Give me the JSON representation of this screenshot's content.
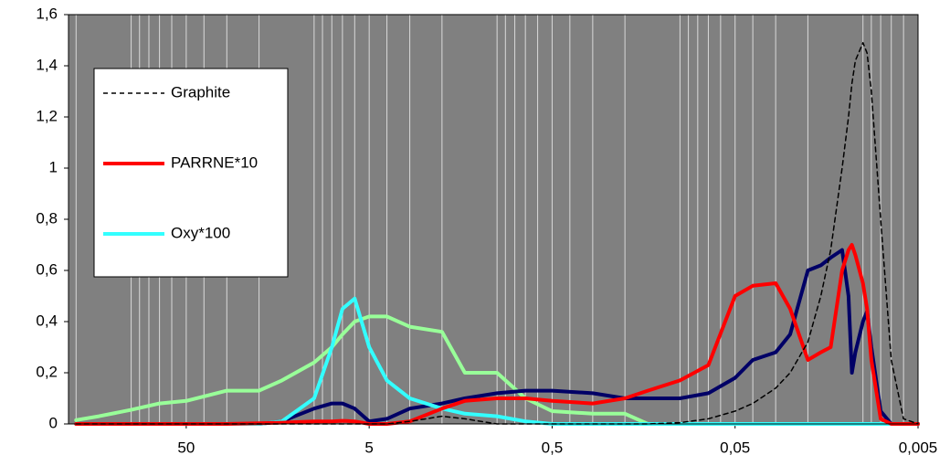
{
  "chart_data": {
    "type": "line",
    "x": [
      200,
      150,
      100,
      70,
      50,
      30,
      20,
      15,
      10,
      8,
      7,
      6,
      5,
      4,
      3,
      2,
      1.5,
      1,
      0.7,
      0.5,
      0.3,
      0.2,
      0.15,
      0.1,
      0.07,
      0.05,
      0.04,
      0.03,
      0.025,
      0.02,
      0.017,
      0.015,
      0.013,
      0.012,
      0.0115,
      0.011,
      0.01,
      0.0095,
      0.009,
      0.008,
      0.007,
      0.006,
      0.005
    ],
    "series": [
      {
        "name": "Graphite",
        "color": "#000000",
        "dash": true,
        "values": [
          0,
          0,
          0,
          0,
          0,
          0,
          0,
          0,
          0,
          0,
          0,
          0,
          0,
          0,
          0.01,
          0.03,
          0.02,
          0,
          0,
          0,
          0,
          0,
          0,
          0.005,
          0.02,
          0.05,
          0.08,
          0.14,
          0.2,
          0.32,
          0.5,
          0.68,
          1.0,
          1.2,
          1.33,
          1.42,
          1.49,
          1.45,
          1.3,
          0.8,
          0.25,
          0.02,
          0
        ]
      },
      {
        "name": "PARRNE*10",
        "color": "#ff0000",
        "values": [
          0,
          0,
          0,
          0,
          0,
          0,
          0.003,
          0.005,
          0.01,
          0.01,
          0.012,
          0.01,
          0,
          0,
          0.01,
          0.06,
          0.09,
          0.1,
          0.1,
          0.09,
          0.08,
          0.1,
          0.13,
          0.17,
          0.23,
          0.5,
          0.54,
          0.55,
          0.45,
          0.25,
          0.28,
          0.3,
          0.6,
          0.68,
          0.7,
          0.66,
          0.55,
          0.45,
          0.25,
          0.02,
          0,
          0,
          0
        ]
      },
      {
        "name": "Oxy*100",
        "color": "#33ffff",
        "values": [
          0,
          0,
          0,
          0,
          0,
          0,
          0,
          0.01,
          0.1,
          0.3,
          0.45,
          0.49,
          0.3,
          0.17,
          0.1,
          0.06,
          0.04,
          0.03,
          0.01,
          0,
          0,
          0,
          0,
          0,
          0,
          0,
          0,
          0,
          0,
          0,
          0,
          0,
          0,
          0,
          0,
          0,
          0,
          0,
          0,
          0,
          0,
          0,
          0
        ]
      },
      {
        "color": "#000066",
        "values": [
          0,
          0,
          0,
          0,
          0,
          0,
          0,
          0.01,
          0.06,
          0.08,
          0.08,
          0.06,
          0.01,
          0.02,
          0.06,
          0.08,
          0.1,
          0.12,
          0.13,
          0.13,
          0.12,
          0.1,
          0.1,
          0.1,
          0.12,
          0.18,
          0.25,
          0.28,
          0.35,
          0.6,
          0.62,
          0.65,
          0.68,
          0.5,
          0.2,
          0.28,
          0.4,
          0.44,
          0.3,
          0.05,
          0,
          0,
          0
        ]
      },
      {
        "color": "#99ff99",
        "values": [
          0.015,
          0.03,
          0.055,
          0.08,
          0.09,
          0.13,
          0.13,
          0.17,
          0.24,
          0.3,
          0.35,
          0.4,
          0.42,
          0.42,
          0.38,
          0.36,
          0.2,
          0.2,
          0.1,
          0.05,
          0.04,
          0.04,
          0,
          0,
          0,
          0,
          0,
          0,
          0,
          0,
          0,
          0,
          0,
          0,
          0,
          0,
          0,
          0,
          0,
          0,
          0,
          0,
          0
        ]
      }
    ],
    "xlim": [
      220,
      0.005
    ],
    "xlog": true,
    "xgrid_minor": true,
    "xticks": [
      50,
      5,
      {
        "value": 0.5,
        "label": "0,5"
      },
      {
        "value": 0.05,
        "label": "0,05"
      },
      {
        "value": 0.005,
        "label": "0,005"
      }
    ],
    "ylim": [
      0,
      1.6
    ],
    "yticks": [
      0,
      {
        "value": 0.2,
        "label": "0,2"
      },
      {
        "value": 0.4,
        "label": "0,4"
      },
      {
        "value": 0.6,
        "label": "0,6"
      },
      {
        "value": 0.8,
        "label": "0,8"
      },
      1,
      {
        "value": 1.2,
        "label": "1,2"
      },
      {
        "value": 1.4,
        "label": "1,4"
      },
      {
        "value": 1.6,
        "label": "1,6"
      }
    ],
    "legend": "upper left"
  }
}
